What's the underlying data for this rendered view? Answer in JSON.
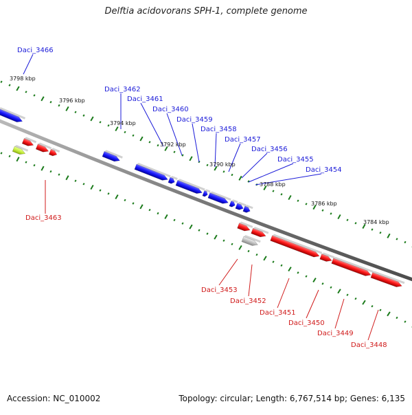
{
  "title": "Delftia acidovorans SPH-1, complete genome",
  "footer": {
    "accession": "Accession: NC_010002",
    "info": "Topology: circular; Length: 6,767,514 bp; Genes: 6,135"
  },
  "colors": {
    "forward": "#1a1aff",
    "reverse": "#ff1a1a",
    "unknown": "#c0c0c0",
    "highlight": "#c8f040",
    "ticks": "#1a7a1a",
    "backbone": "#8a8a8a"
  },
  "tick_labels": [
    "3798 kbp",
    "3796 kbp",
    "3794 kbp",
    "3792 kbp",
    "3790 kbp",
    "3788 kbp",
    "3786 kbp",
    "3784 kbp"
  ],
  "forward_genes": [
    "Daci_3466",
    "Daci_3462",
    "Daci_3461",
    "Daci_3460",
    "Daci_3459",
    "Daci_3458",
    "Daci_3457",
    "Daci_3456",
    "Daci_3455",
    "Daci_3454"
  ],
  "reverse_genes": [
    "Daci_3463",
    "Daci_3453",
    "Daci_3452",
    "Daci_3451",
    "Daci_3450",
    "Daci_3449",
    "Daci_3448"
  ]
}
